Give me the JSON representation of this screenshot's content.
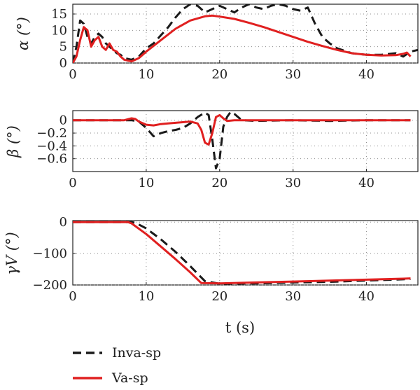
{
  "chart_data": [
    {
      "type": "line",
      "ylabel": "α (°)",
      "xlim": [
        0,
        47
      ],
      "ylim": [
        0,
        18
      ],
      "x_ticks": [
        0,
        10,
        20,
        30,
        40
      ],
      "y_ticks": [
        0,
        5,
        10,
        15
      ],
      "grid": true,
      "series": [
        {
          "name": "Inva-sp",
          "x": [
            0,
            0.5,
            1,
            1.5,
            2,
            2.5,
            3,
            3.5,
            4,
            4.5,
            5,
            5.5,
            6,
            6.5,
            7,
            8,
            9,
            10,
            11,
            12,
            13,
            14,
            15,
            16,
            17,
            18,
            19,
            20,
            21,
            22,
            23,
            24,
            25,
            26,
            27,
            28,
            29,
            30,
            31,
            32,
            33,
            34,
            35,
            36,
            38,
            40,
            42,
            44,
            45,
            46,
            47
          ],
          "y": [
            0,
            5,
            13,
            12,
            8,
            6,
            8,
            9,
            8,
            6,
            5,
            4,
            3,
            2.5,
            1.5,
            1,
            2,
            4.5,
            6,
            8.5,
            11,
            14,
            16.5,
            18,
            17.5,
            15.5,
            16.5,
            17.5,
            16.5,
            15.5,
            17,
            18,
            17,
            16.5,
            17.5,
            18,
            17.5,
            16.5,
            16,
            17,
            12,
            8,
            6,
            4.5,
            3,
            2.5,
            2.5,
            3,
            2,
            3.5,
            4
          ]
        },
        {
          "name": "Va-sp",
          "x": [
            0,
            0.5,
            1,
            1.5,
            2,
            2.5,
            3,
            3.5,
            4,
            4.5,
            5,
            5.5,
            6,
            6.5,
            7,
            8,
            9,
            10,
            12,
            14,
            16,
            18,
            19,
            20,
            22,
            24,
            26,
            28,
            30,
            32,
            34,
            36,
            38,
            40,
            42,
            44,
            45,
            45.5,
            46
          ],
          "y": [
            0,
            2,
            7,
            11,
            10,
            5,
            7,
            8,
            5,
            4,
            6,
            4,
            3.5,
            2,
            1,
            0.5,
            1.5,
            3.5,
            7,
            10.5,
            13,
            14.3,
            14.5,
            14.2,
            13.5,
            12.3,
            11,
            9.5,
            8,
            6.5,
            5.2,
            4,
            3,
            2.5,
            2.3,
            2.4,
            2.8,
            3.2,
            2
          ]
        }
      ]
    },
    {
      "type": "line",
      "ylabel": "β (°)",
      "xlim": [
        0,
        47
      ],
      "ylim": [
        -0.8,
        0.15
      ],
      "x_ticks": [
        0,
        10,
        20,
        30,
        40
      ],
      "y_ticks": [
        0,
        -0.2,
        -0.4,
        -0.6
      ],
      "y_tick_labels": [
        "0",
        "−0.2",
        "−0.4",
        "−0.6"
      ],
      "grid": true,
      "series": [
        {
          "name": "Inva-sp",
          "x": [
            0,
            8,
            9,
            10,
            11,
            12,
            13,
            14,
            15,
            16,
            17,
            18,
            18.5,
            19,
            19.5,
            20,
            20.5,
            21,
            21.5,
            22,
            23,
            25,
            30,
            35,
            40,
            46
          ],
          "y": [
            0,
            0,
            -0.02,
            -0.12,
            -0.25,
            -0.2,
            -0.17,
            -0.15,
            -0.12,
            -0.05,
            0.05,
            0.12,
            0.08,
            -0.3,
            -0.75,
            -0.6,
            -0.1,
            0.05,
            0.13,
            0.1,
            0,
            -0.01,
            0,
            -0.01,
            0,
            0
          ]
        },
        {
          "name": "Va-sp",
          "x": [
            0,
            7,
            8,
            8.5,
            9,
            10,
            11,
            12,
            13,
            14,
            15,
            16,
            17,
            17.5,
            18,
            18.5,
            19,
            19.5,
            20,
            20.5,
            21,
            22,
            25,
            30,
            40,
            46
          ],
          "y": [
            0,
            0,
            0.03,
            0.02,
            -0.02,
            -0.07,
            -0.08,
            -0.06,
            -0.05,
            -0.04,
            -0.03,
            -0.02,
            -0.05,
            -0.15,
            -0.35,
            -0.38,
            -0.2,
            0.05,
            0.08,
            0.03,
            -0.01,
            0,
            0,
            0,
            0,
            0
          ]
        }
      ]
    },
    {
      "type": "line",
      "ylabel": "γV (°)",
      "xlabel": "t (s)",
      "xlim": [
        0,
        47
      ],
      "ylim": [
        -200,
        5
      ],
      "x_ticks": [
        0,
        10,
        20,
        30,
        40
      ],
      "y_ticks": [
        0,
        -100,
        -200
      ],
      "y_tick_labels": [
        "0",
        "−100",
        "−200"
      ],
      "grid": true,
      "series": [
        {
          "name": "Inva-sp",
          "x": [
            0,
            8,
            8.5,
            10,
            12,
            14,
            16,
            18,
            20,
            25,
            30,
            35,
            40,
            45,
            46
          ],
          "y": [
            0,
            0,
            -2,
            -20,
            -55,
            -95,
            -140,
            -188,
            -196,
            -195,
            -192,
            -190,
            -186,
            -182,
            -181
          ]
        },
        {
          "name": "Va-sp",
          "x": [
            0,
            7.5,
            8,
            10,
            12,
            14,
            16,
            17.5,
            20,
            25,
            30,
            35,
            40,
            45,
            46
          ],
          "y": [
            0,
            0,
            -4,
            -38,
            -78,
            -118,
            -160,
            -194,
            -195,
            -192,
            -189,
            -186,
            -183,
            -180,
            -179
          ]
        }
      ]
    }
  ],
  "legend": {
    "placement": "bottom-left",
    "entries": [
      {
        "label": "Inva-sp",
        "style": "dashed",
        "color": "#1a1a1a"
      },
      {
        "label": "Va-sp",
        "style": "solid",
        "color": "#e02020"
      }
    ]
  },
  "colors": {
    "inva": "#1a1a1a",
    "va": "#e02020"
  }
}
